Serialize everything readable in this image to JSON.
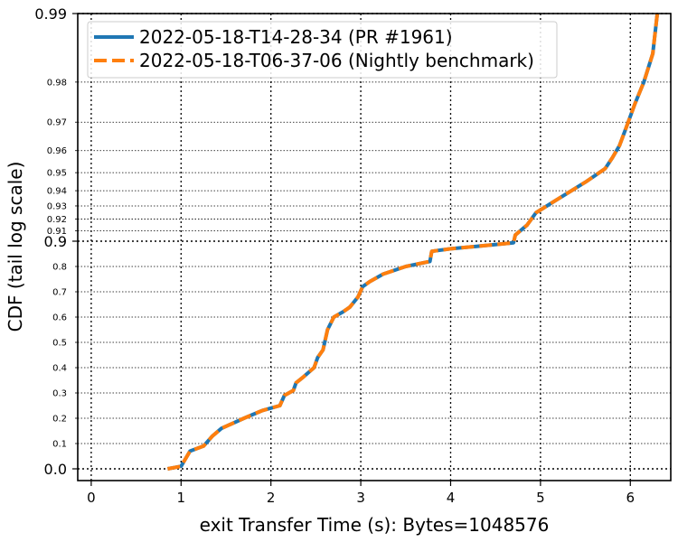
{
  "chart_data": {
    "type": "line",
    "xlabel": "exit Transfer Time (s): Bytes=1048576",
    "ylabel": "CDF (tail log scale)",
    "xlim": [
      -0.15,
      6.45
    ],
    "x_ticks": [
      "0",
      "1",
      "2",
      "3",
      "4",
      "5",
      "6"
    ],
    "y_major_ticks": [
      "0.0",
      "0.9",
      "0.99"
    ],
    "y_minor_ticks": [
      "0.1",
      "0.2",
      "0.3",
      "0.4",
      "0.5",
      "0.6",
      "0.7",
      "0.8",
      "0.91",
      "0.92",
      "0.93",
      "0.94",
      "0.95",
      "0.96",
      "0.97",
      "0.98"
    ],
    "y_scale": "tail-log",
    "grid": true,
    "legend_position": "top-left",
    "series": [
      {
        "name": "2022-05-18-T14-28-34 (PR #1961)",
        "color": "#1f77b4",
        "style": "solid",
        "x": [
          0.85,
          1.0,
          1.1,
          1.25,
          1.35,
          1.45,
          1.7,
          1.9,
          2.1,
          2.15,
          2.25,
          2.28,
          2.35,
          2.48,
          2.52,
          2.58,
          2.63,
          2.7,
          2.8,
          2.88,
          2.97,
          3.02,
          3.1,
          3.25,
          3.5,
          3.77,
          3.79,
          4.0,
          4.3,
          4.6,
          4.7,
          4.72,
          4.85,
          4.95,
          5.2,
          5.5,
          5.72,
          5.8,
          5.88,
          5.95,
          6.05,
          6.15,
          6.25,
          6.3
        ],
        "y": [
          0.0,
          0.01,
          0.07,
          0.09,
          0.13,
          0.16,
          0.2,
          0.23,
          0.25,
          0.29,
          0.31,
          0.34,
          0.36,
          0.4,
          0.44,
          0.47,
          0.55,
          0.6,
          0.62,
          0.64,
          0.68,
          0.72,
          0.74,
          0.77,
          0.8,
          0.82,
          0.86,
          0.87,
          0.88,
          0.89,
          0.894,
          0.906,
          0.915,
          0.925,
          0.935,
          0.945,
          0.952,
          0.957,
          0.962,
          0.968,
          0.975,
          0.98,
          0.985,
          0.99
        ]
      },
      {
        "name": "2022-05-18-T06-37-06 (Nightly benchmark)",
        "color": "#ff7f0e",
        "style": "dashed",
        "x": [
          0.85,
          1.0,
          1.1,
          1.25,
          1.35,
          1.45,
          1.7,
          1.9,
          2.1,
          2.15,
          2.25,
          2.28,
          2.35,
          2.48,
          2.52,
          2.58,
          2.63,
          2.7,
          2.8,
          2.88,
          2.97,
          3.02,
          3.1,
          3.25,
          3.5,
          3.77,
          3.79,
          4.0,
          4.3,
          4.6,
          4.7,
          4.72,
          4.85,
          4.95,
          5.2,
          5.5,
          5.72,
          5.8,
          5.88,
          5.95,
          6.05,
          6.15,
          6.25,
          6.3
        ],
        "y": [
          0.0,
          0.01,
          0.07,
          0.09,
          0.13,
          0.16,
          0.2,
          0.23,
          0.25,
          0.29,
          0.31,
          0.34,
          0.36,
          0.4,
          0.44,
          0.47,
          0.55,
          0.6,
          0.62,
          0.64,
          0.68,
          0.72,
          0.74,
          0.77,
          0.8,
          0.82,
          0.86,
          0.87,
          0.88,
          0.89,
          0.894,
          0.906,
          0.915,
          0.925,
          0.935,
          0.945,
          0.952,
          0.957,
          0.962,
          0.968,
          0.975,
          0.98,
          0.985,
          0.99
        ]
      }
    ]
  }
}
